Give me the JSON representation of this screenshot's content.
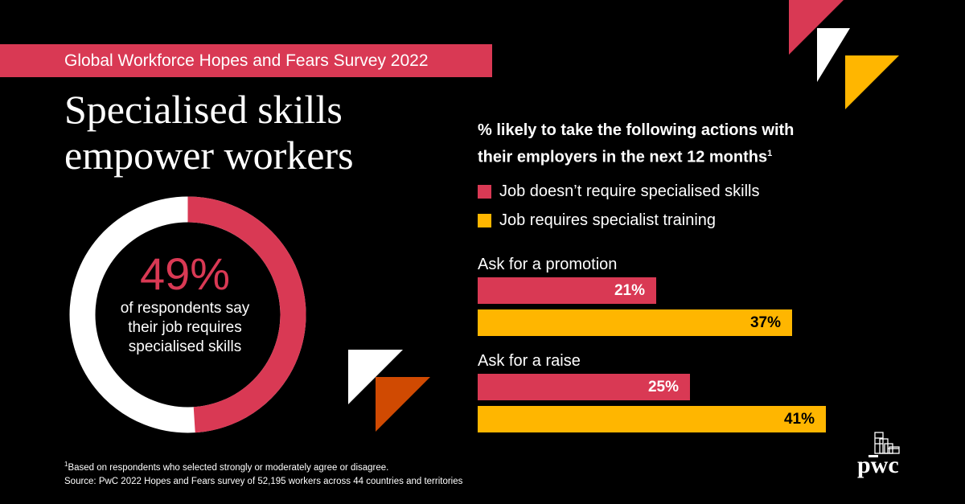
{
  "banner": {
    "text": "Global Workforce Hopes and Fears Survey 2022"
  },
  "headline": {
    "line1": "Specialised skills",
    "line2": "empower workers"
  },
  "donut": {
    "value_pct": 49,
    "pct_label": "49%",
    "line1": "of respondents say",
    "line2": "their job requires",
    "line3": "specialised skills",
    "color_filled": "#d93954",
    "color_rest": "#ffffff"
  },
  "chart_data": {
    "type": "bar",
    "orientation": "horizontal",
    "title": "% likely to take the following actions with their employers in the next 12 months",
    "title_line1": "% likely to take the following actions with",
    "title_line2": "their employers in the next 12 months",
    "title_footnote": "1",
    "categories": [
      "Ask for a promotion",
      "Ask for a raise"
    ],
    "series": [
      {
        "name": "Job doesn’t require specialised skills",
        "color": "#d93954",
        "values": [
          21,
          25
        ],
        "labels": [
          "21%",
          "25%"
        ]
      },
      {
        "name": "Job requires specialist training",
        "color": "#ffb600",
        "values": [
          37,
          41
        ],
        "labels": [
          "37%",
          "41%"
        ]
      }
    ],
    "xlim": [
      0,
      41
    ],
    "grid": false,
    "legend_position": "top"
  },
  "footnote": {
    "marker": "1",
    "line1": "Based on respondents who selected strongly or moderately agree or disagree.",
    "line2": "Source: PwC 2022 Hopes and Fears survey of 52,195 workers across 44 countries and territories"
  },
  "logo": {
    "text": "pwc"
  },
  "colors": {
    "background": "#000000",
    "pink": "#d93954",
    "yellow": "#ffb600",
    "orange": "#d04a02",
    "white": "#ffffff"
  }
}
